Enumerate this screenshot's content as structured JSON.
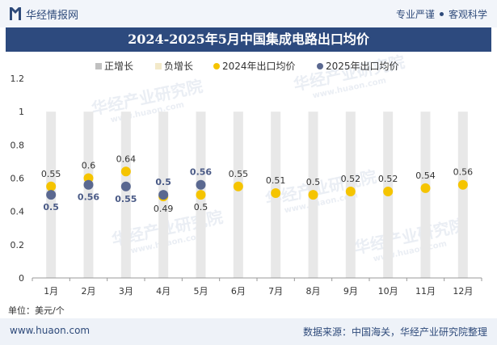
{
  "header": {
    "brand": "华经情报网",
    "slogan_left": "专业严谨",
    "slogan_right": "客观科学"
  },
  "title": "2024-2025年5月中国集成电路出口均价",
  "unit_label": "单位：美元/个",
  "footer": {
    "website": "www.huaon.com",
    "source": "数据来源：中国海关，华经产业研究院整理"
  },
  "watermark": "华经产业研究院",
  "watermark_url": "www.huaon.com",
  "colors": {
    "bar": "#e8e8e8",
    "positive": "#c0c0c0",
    "negative": "#f3e9c9",
    "series2024": "#f5c400",
    "series2025": "#5a6890",
    "title_bg": "#2d4a7e"
  },
  "chart_data": {
    "type": "bar+scatter",
    "categories": [
      "1月",
      "2月",
      "3月",
      "4月",
      "5月",
      "6月",
      "7月",
      "8月",
      "9月",
      "10月",
      "11月",
      "12月"
    ],
    "ylim": [
      0,
      1.2
    ],
    "yticks": [
      0,
      0.2,
      0.4,
      0.6,
      0.8,
      1,
      1.2
    ],
    "legend": [
      "正增长",
      "负增长",
      "2024年出口均价",
      "2025年出口均价"
    ],
    "bar_value": 1,
    "series": [
      {
        "name": "2024年出口均价",
        "values": [
          0.55,
          0.6,
          0.64,
          0.49,
          0.5,
          0.55,
          0.51,
          0.5,
          0.52,
          0.52,
          0.54,
          0.56
        ]
      },
      {
        "name": "2025年出口均价",
        "values": [
          0.5,
          0.56,
          0.55,
          0.5,
          0.56,
          null,
          null,
          null,
          null,
          null,
          null,
          null
        ]
      }
    ]
  }
}
